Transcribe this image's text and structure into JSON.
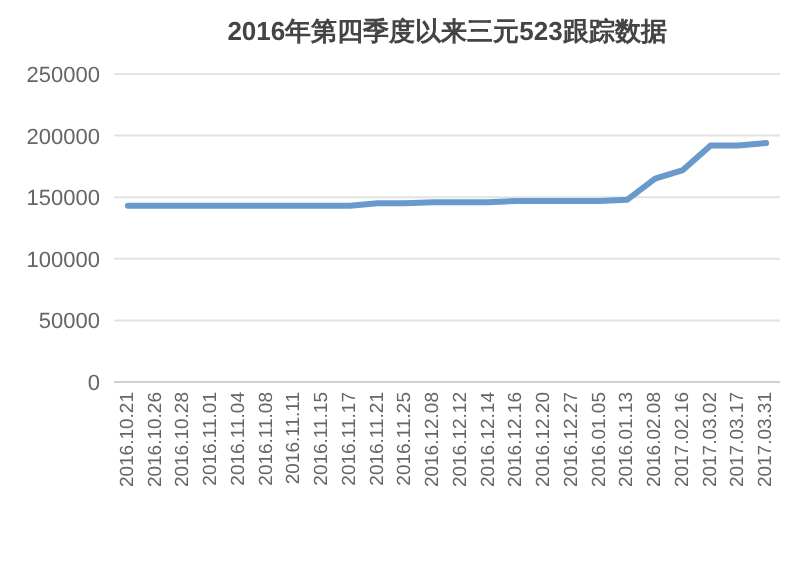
{
  "chart_data": {
    "type": "line",
    "title": "2016年第四季度以来三元523跟踪数据",
    "categories": [
      "2016.10.21",
      "2016.10.26",
      "2016.10.28",
      "2016.11.01",
      "2016.11.04",
      "2016.11.08",
      "2016.11.11",
      "2016.11.15",
      "2016.11.17",
      "2016.11.21",
      "2016.11.25",
      "2016.12.08",
      "2016.12.12",
      "2016.12.14",
      "2016.12.16",
      "2016.12.20",
      "2016.12.27",
      "2016.01.05",
      "2016.01.13",
      "2016.02.08",
      "2017.02.16",
      "2017.03.02",
      "2017.03.17",
      "2017.03.31"
    ],
    "series": [
      {
        "color": "#6a9acb",
        "values": [
          143000,
          143000,
          143000,
          143000,
          143000,
          143000,
          143000,
          143000,
          143000,
          145000,
          145000,
          146000,
          146000,
          146000,
          147000,
          147000,
          147000,
          147000,
          148000,
          165000,
          172000,
          192000,
          192000,
          194000
        ]
      }
    ],
    "ylim": [
      0,
      250000
    ],
    "yticks": [
      0,
      50000,
      100000,
      150000,
      200000,
      250000
    ],
    "grid": "y",
    "marker": "none",
    "line_style": "solid"
  }
}
